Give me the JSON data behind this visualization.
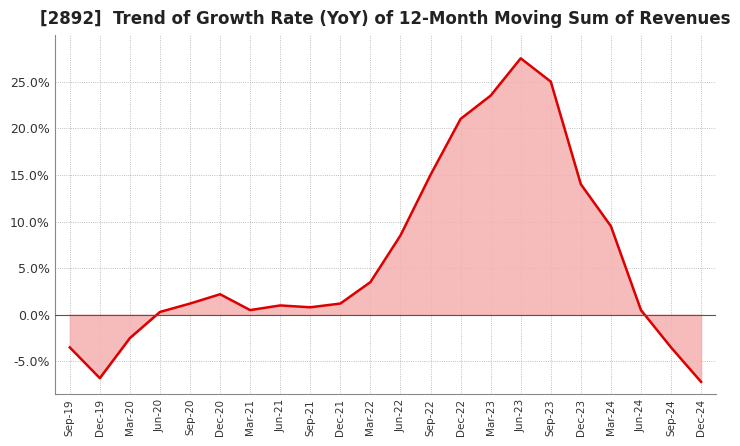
{
  "title": "[2892]  Trend of Growth Rate (YoY) of 12-Month Moving Sum of Revenues",
  "title_fontsize": 12,
  "x_labels": [
    "Sep-19",
    "Dec-19",
    "Mar-20",
    "Jun-20",
    "Sep-20",
    "Dec-20",
    "Mar-21",
    "Jun-21",
    "Sep-21",
    "Dec-21",
    "Mar-22",
    "Jun-22",
    "Sep-22",
    "Dec-22",
    "Mar-23",
    "Jun-23",
    "Sep-23",
    "Dec-23",
    "Mar-24",
    "Jun-24",
    "Sep-24",
    "Dec-24"
  ],
  "y_values": [
    -3.5,
    -6.8,
    -2.5,
    0.3,
    1.2,
    2.2,
    0.5,
    1.0,
    0.8,
    1.2,
    3.5,
    8.5,
    15.0,
    21.0,
    23.5,
    27.5,
    25.0,
    14.0,
    9.5,
    0.5,
    -3.5,
    -7.2
  ],
  "line_color": "#dd0000",
  "fill_color": "#f5b0b0",
  "ylim": [
    -8.5,
    30.0
  ],
  "yticks": [
    -5.0,
    0.0,
    5.0,
    10.0,
    15.0,
    20.0,
    25.0
  ],
  "background_color": "#ffffff",
  "grid_color": "#aaaaaa",
  "plot_bg_color": "#ffffff"
}
